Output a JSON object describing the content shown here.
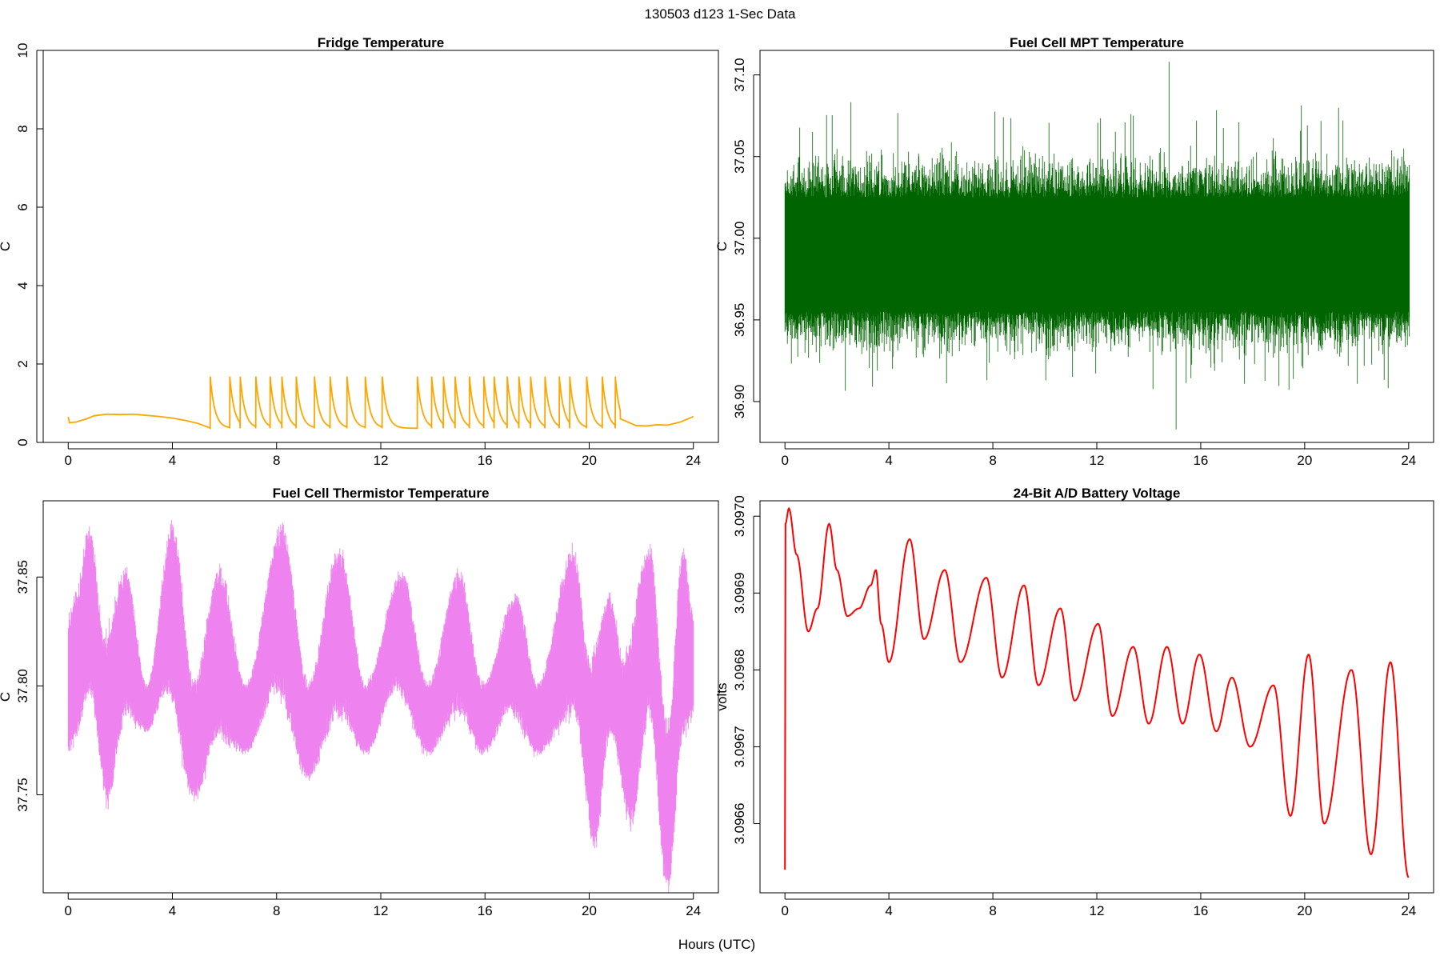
{
  "figure": {
    "title": "130503   d123   1-Sec Data",
    "xlabel": "Hours (UTC)"
  },
  "chart_data": [
    {
      "type": "line",
      "title": "Fridge Temperature",
      "xlabel": "Hours (UTC)",
      "ylabel": "C",
      "color": "#FFA500",
      "xlim": [
        0,
        24
      ],
      "ylim": [
        0,
        10
      ],
      "xticks": [
        0,
        4,
        8,
        12,
        16,
        20,
        24
      ],
      "yticks": [
        0,
        2,
        4,
        6,
        8,
        10
      ],
      "yticklabels": [
        "0",
        "2",
        "4",
        "6",
        "8",
        "10"
      ],
      "grid": false,
      "series": [
        {
          "name": "fridge",
          "shape": "pulse",
          "pre": {
            "x": [
              0,
              0.05,
              0.3,
              0.7,
              1.0,
              1.5,
              2.0,
              2.5,
              3.0,
              3.5,
              4.0,
              4.5,
              5.0,
              5.4
            ],
            "y": [
              0.65,
              0.5,
              0.52,
              0.6,
              0.68,
              0.72,
              0.71,
              0.72,
              0.69,
              0.66,
              0.62,
              0.56,
              0.48,
              0.38
            ]
          },
          "pulse_times": [
            5.45,
            6.2,
            6.6,
            7.2,
            7.75,
            8.2,
            8.75,
            9.45,
            10.05,
            10.7,
            11.4,
            12.05,
            13.4,
            13.95,
            14.4,
            14.85,
            15.4,
            15.95,
            16.35,
            16.85,
            17.3,
            17.75,
            18.3,
            18.85,
            19.25,
            19.9,
            20.5,
            21.0
          ],
          "pulse_end": 21.2,
          "pulse_peak": 1.68,
          "pulse_base": 0.36,
          "post": {
            "x": [
              21.2,
              21.8,
              22.2,
              22.6,
              23.0,
              23.5,
              24.0
            ],
            "y": [
              0.6,
              0.43,
              0.42,
              0.45,
              0.44,
              0.52,
              0.66
            ]
          }
        }
      ]
    },
    {
      "type": "line",
      "title": "Fuel Cell MPT Temperature",
      "xlabel": "Hours (UTC)",
      "ylabel": "C",
      "color": "#006400",
      "xlim": [
        0,
        24
      ],
      "ylim": [
        36.875,
        37.115
      ],
      "xticks": [
        0,
        4,
        8,
        12,
        16,
        20,
        24
      ],
      "yticks": [
        36.9,
        36.95,
        37.0,
        37.05,
        37.1
      ],
      "yticklabels": [
        "36.90",
        "36.95",
        "37.00",
        "37.05",
        "37.10"
      ],
      "grid": false,
      "series": [
        {
          "name": "mpt",
          "shape": "noise",
          "center": 36.99,
          "band": [
            36.955,
            37.025
          ],
          "max": 37.108,
          "min": 36.883
        }
      ]
    },
    {
      "type": "line",
      "title": "Fuel Cell Thermistor Temperature",
      "xlabel": "Hours (UTC)",
      "ylabel": "C",
      "color": "#EE82EE",
      "xlim": [
        0,
        24
      ],
      "ylim": [
        37.705,
        37.885
      ],
      "xticks": [
        0,
        4,
        8,
        12,
        16,
        20,
        24
      ],
      "yticks": [
        37.75,
        37.8,
        37.85
      ],
      "yticklabels": [
        "37.75",
        "37.80",
        "37.85"
      ],
      "grid": false,
      "series": [
        {
          "name": "thermistor",
          "shape": "envelope",
          "upper": {
            "x": [
              0,
              0.3,
              0.8,
              1.4,
              2.2,
              3.0,
              4.0,
              4.8,
              5.8,
              6.8,
              8.2,
              9.2,
              10.4,
              11.4,
              12.8,
              13.8,
              15.0,
              15.9,
              17.2,
              18.0,
              19.4,
              20.0,
              20.8,
              21.3,
              22.3,
              23.0,
              23.6,
              24.0
            ],
            "y": [
              37.83,
              37.84,
              37.87,
              37.82,
              37.85,
              37.8,
              37.87,
              37.8,
              37.85,
              37.8,
              37.87,
              37.8,
              37.86,
              37.8,
              37.85,
              37.8,
              37.85,
              37.8,
              37.84,
              37.8,
              37.86,
              37.81,
              37.84,
              37.81,
              37.86,
              37.78,
              37.86,
              37.83
            ]
          },
          "lower": {
            "x": [
              0,
              0.3,
              0.8,
              1.5,
              2.2,
              3.0,
              3.8,
              4.8,
              5.8,
              6.8,
              8.0,
              9.2,
              10.4,
              11.4,
              12.6,
              13.8,
              15.0,
              15.9,
              17.0,
              18.0,
              19.4,
              20.2,
              20.8,
              21.6,
              22.3,
              23.0,
              23.6,
              24.0
            ],
            "y": [
              37.77,
              37.78,
              37.8,
              37.75,
              37.79,
              37.78,
              37.8,
              37.75,
              37.78,
              37.77,
              37.8,
              37.76,
              37.79,
              37.77,
              37.8,
              37.77,
              37.79,
              37.77,
              37.79,
              37.77,
              37.79,
              37.73,
              37.78,
              37.74,
              37.79,
              37.71,
              37.78,
              37.79
            ]
          }
        }
      ]
    },
    {
      "type": "line",
      "title": "24-Bit A/D Battery Voltage",
      "xlabel": "Hours (UTC)",
      "ylabel": "volts",
      "color": "#FF0000",
      "xlim": [
        0,
        24
      ],
      "ylim": [
        3.09651,
        3.09702
      ],
      "xticks": [
        0,
        4,
        8,
        12,
        16,
        20,
        24
      ],
      "yticks": [
        3.0966,
        3.0967,
        3.0968,
        3.0969,
        3.097
      ],
      "yticklabels": [
        "3.0966",
        "3.0967",
        "3.0968",
        "3.0969",
        "3.0970"
      ],
      "grid": false,
      "series": [
        {
          "name": "battery",
          "shape": "smooth",
          "x": [
            0.0,
            0.02,
            0.15,
            0.45,
            0.9,
            1.25,
            1.7,
            2.0,
            2.4,
            2.85,
            3.3,
            3.5,
            3.7,
            4.0,
            4.8,
            5.35,
            6.15,
            6.75,
            7.75,
            8.35,
            9.2,
            9.75,
            10.6,
            11.15,
            12.05,
            12.6,
            13.4,
            14.0,
            14.7,
            15.3,
            15.95,
            16.6,
            17.2,
            17.9,
            18.8,
            19.45,
            20.15,
            20.75,
            21.8,
            22.55,
            23.3,
            24.0
          ],
          "y": [
            3.09654,
            3.09699,
            3.09701,
            3.09695,
            3.09685,
            3.09688,
            3.09699,
            3.09693,
            3.09687,
            3.09688,
            3.09691,
            3.09693,
            3.09686,
            3.09681,
            3.09697,
            3.09684,
            3.09693,
            3.09681,
            3.09692,
            3.09679,
            3.09691,
            3.09678,
            3.09688,
            3.09676,
            3.09686,
            3.09674,
            3.09683,
            3.09673,
            3.09683,
            3.09673,
            3.09682,
            3.09672,
            3.09679,
            3.0967,
            3.09678,
            3.09661,
            3.09682,
            3.0966,
            3.0968,
            3.09656,
            3.09681,
            3.09653
          ]
        }
      ]
    }
  ]
}
